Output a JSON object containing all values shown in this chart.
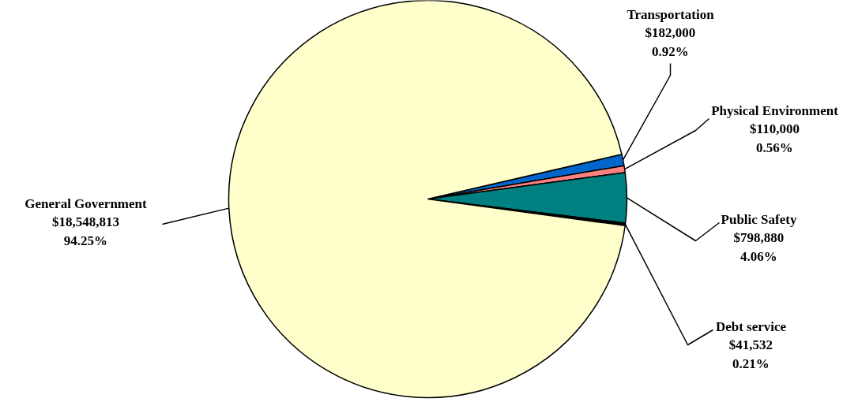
{
  "chart_data": {
    "type": "pie",
    "categories": [
      "Transportation",
      "Physical Environment",
      "Public Safety",
      "Debt service",
      "General Government"
    ],
    "values": [
      182000,
      110000,
      798880,
      41532,
      18548813
    ],
    "colors": [
      "#0066cc",
      "#ff8080",
      "#008080",
      "#000000",
      "#ffffcc"
    ],
    "value_labels": [
      "$182,000\n0.92%",
      "$110,000\n0.56%",
      "$798,880\n4.06%",
      "$41,532\n0.21%",
      "$18,548,813\n94.25%"
    ],
    "legend": false
  }
}
